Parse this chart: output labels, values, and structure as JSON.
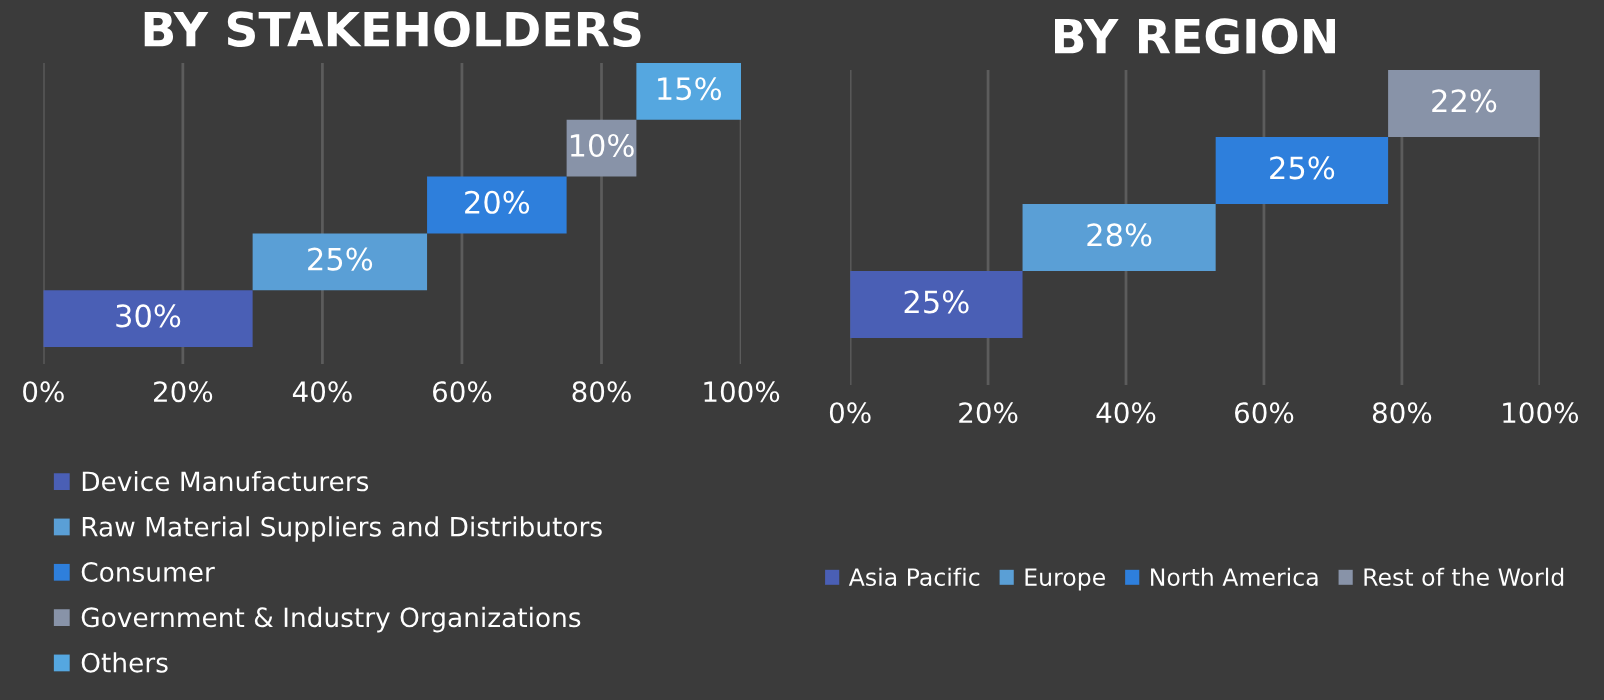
{
  "chart_data": [
    {
      "type": "bar",
      "title": "BY STAKEHOLDERS",
      "orientation": "horizontal",
      "categories": [
        null,
        null,
        null,
        null,
        null
      ],
      "xlim": [
        0,
        100
      ],
      "xticks": [
        {
          "value": 0,
          "label": "0%"
        },
        {
          "value": 20,
          "label": "20%"
        },
        {
          "value": 40,
          "label": "40%"
        },
        {
          "value": 60,
          "label": "60%"
        },
        {
          "value": 80,
          "label": "80%"
        },
        {
          "value": 100,
          "label": "100%"
        }
      ],
      "grid": "x",
      "legend": "bottom",
      "tick_labels": "x",
      "series": [
        {
          "name": "Device Manufacturers",
          "color": "#4a5fb5",
          "values": [
            null,
            null,
            null,
            null,
            30
          ],
          "base": [
            null,
            null,
            null,
            null,
            0
          ],
          "value_labels": [
            null,
            null,
            null,
            null,
            "30%"
          ]
        },
        {
          "name": "Raw Material Suppliers and Distributors",
          "color": "#5a9fd6",
          "values": [
            null,
            null,
            null,
            25,
            null
          ],
          "base": [
            null,
            null,
            null,
            30,
            null
          ],
          "value_labels": [
            null,
            null,
            null,
            "25%",
            null
          ]
        },
        {
          "name": "Consumer",
          "color": "#2e7fdc",
          "values": [
            null,
            null,
            20,
            null,
            null
          ],
          "base": [
            null,
            null,
            55,
            null,
            null
          ],
          "value_labels": [
            null,
            null,
            "20%",
            null,
            null
          ]
        },
        {
          "name": "Government & Industry Organizations",
          "color": "#8893a8",
          "values": [
            null,
            10,
            null,
            null,
            null
          ],
          "base": [
            null,
            75,
            null,
            null,
            null
          ],
          "value_labels": [
            null,
            "10%",
            null,
            null,
            null
          ]
        },
        {
          "name": "Others",
          "color": "#55a7e0",
          "values": [
            15,
            null,
            null,
            null,
            null
          ],
          "base": [
            85,
            null,
            null,
            null,
            null
          ],
          "value_labels": [
            "15%",
            null,
            null,
            null,
            null
          ]
        }
      ]
    },
    {
      "type": "bar",
      "title": "BY REGION",
      "orientation": "horizontal",
      "categories": [
        null,
        null,
        null,
        null
      ],
      "xlim": [
        0,
        100
      ],
      "xticks": [
        {
          "value": 0,
          "label": "0%"
        },
        {
          "value": 20,
          "label": "20%"
        },
        {
          "value": 40,
          "label": "40%"
        },
        {
          "value": 60,
          "label": "60%"
        },
        {
          "value": 80,
          "label": "80%"
        },
        {
          "value": 100,
          "label": "100%"
        }
      ],
      "grid": "x",
      "legend": "bottom",
      "tick_labels": "x",
      "series": [
        {
          "name": "Asia Pacific",
          "color": "#4a5fb5",
          "values": [
            null,
            null,
            null,
            25
          ],
          "base": [
            null,
            null,
            null,
            0
          ],
          "value_labels": [
            null,
            null,
            null,
            "25%"
          ]
        },
        {
          "name": "Europe",
          "color": "#5a9fd6",
          "values": [
            null,
            null,
            28,
            null
          ],
          "base": [
            null,
            null,
            25,
            null
          ],
          "value_labels": [
            null,
            null,
            "28%",
            null
          ]
        },
        {
          "name": "North America",
          "color": "#2e7fdc",
          "values": [
            null,
            25,
            null,
            null
          ],
          "base": [
            null,
            53,
            null,
            null
          ],
          "value_labels": [
            null,
            "25%",
            null,
            null
          ]
        },
        {
          "name": "Rest of the World",
          "color": "#8893a8",
          "values": [
            22,
            null,
            null,
            null
          ],
          "base": [
            78,
            null,
            null,
            null
          ],
          "value_labels": [
            "22%",
            null,
            null,
            null
          ]
        }
      ]
    }
  ]
}
